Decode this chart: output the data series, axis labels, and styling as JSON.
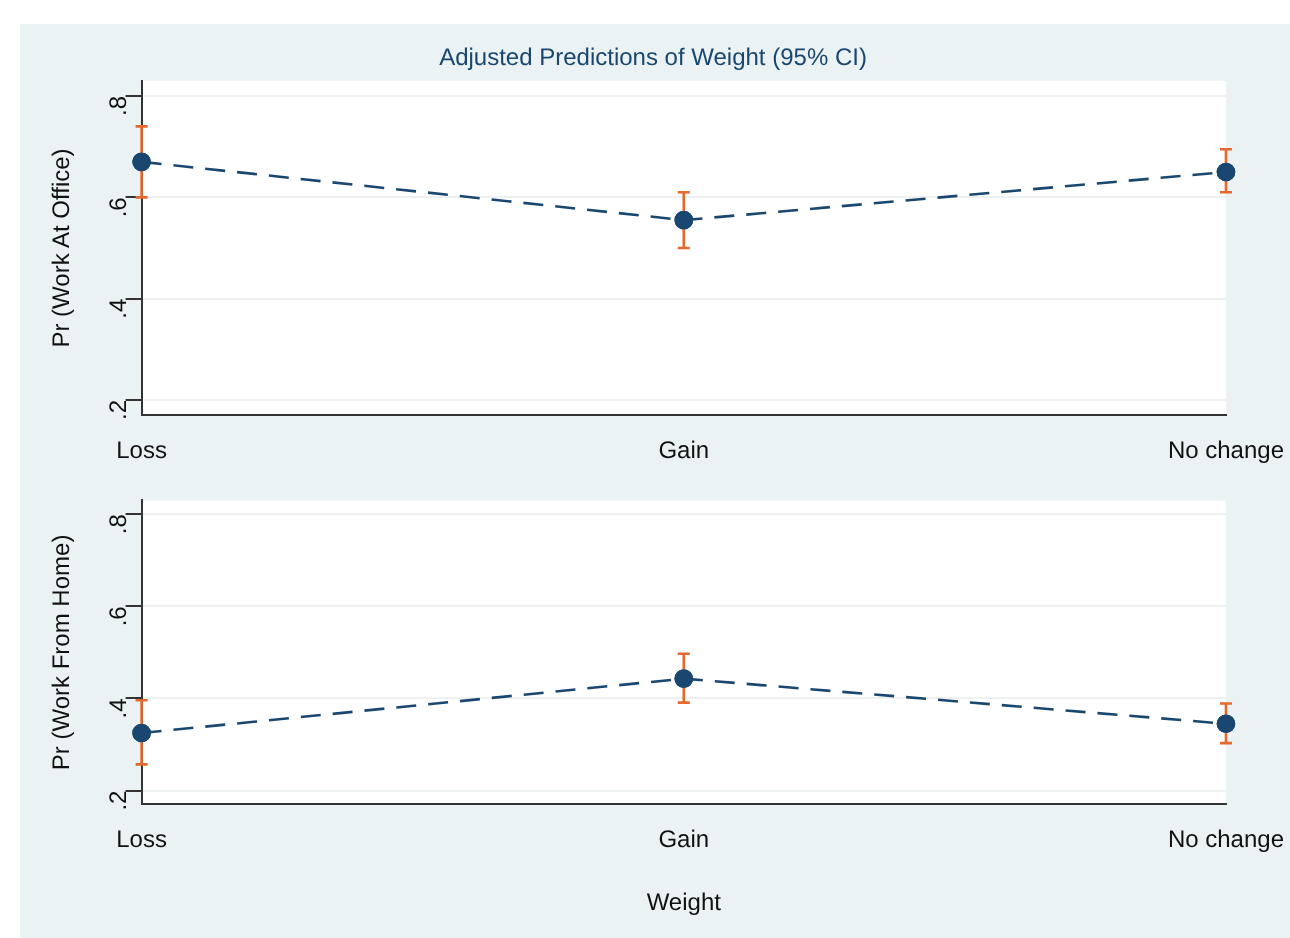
{
  "chart_data": [
    {
      "type": "line",
      "title": "Adjusted Predictions of Weight (95% CI)",
      "ylabel": "Pr (Work At Office)",
      "categories": [
        "Loss",
        "Gain",
        "No change"
      ],
      "series": [
        {
          "color": "#1a476f",
          "values": [
            0.67,
            0.555,
            0.65
          ],
          "errors": [
            [
              0.6,
              0.74
            ],
            [
              0.5,
              0.61
            ],
            [
              0.61,
              0.695
            ]
          ]
        }
      ],
      "ylim": [
        0.17,
        0.83
      ],
      "yticks": [
        {
          "value": 0.2,
          "label": ".2"
        },
        {
          "value": 0.4,
          "label": ".4"
        },
        {
          "value": 0.6,
          "label": ".6"
        },
        {
          "value": 0.8,
          "label": ".8"
        }
      ],
      "grid": "y",
      "legend": false,
      "marker": "circle",
      "line_style": "dashed"
    },
    {
      "type": "line",
      "xlabel": "Weight",
      "ylabel": "Pr (Work From Home)",
      "categories": [
        "Loss",
        "Gain",
        "No change"
      ],
      "series": [
        {
          "color": "#1a476f",
          "values": [
            0.325,
            0.443,
            0.345
          ],
          "errors": [
            [
              0.257,
              0.396
            ],
            [
              0.391,
              0.497
            ],
            [
              0.303,
              0.389
            ]
          ]
        }
      ],
      "ylim": [
        0.17,
        0.83
      ],
      "yticks": [
        {
          "value": 0.2,
          "label": ".2"
        },
        {
          "value": 0.4,
          "label": ".4"
        },
        {
          "value": 0.6,
          "label": ".6"
        },
        {
          "value": 0.8,
          "label": ".8"
        }
      ],
      "grid": "y",
      "legend": false,
      "marker": "circle",
      "line_style": "dashed"
    }
  ]
}
